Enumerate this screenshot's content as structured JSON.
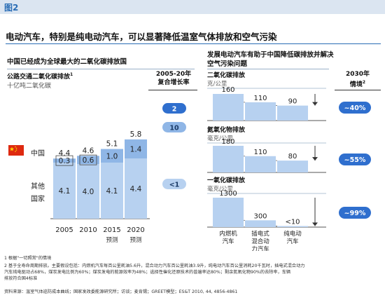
{
  "figure_label": "图2",
  "title": "电动汽车，特别是纯电动汽车，可以显著降低温室气体排放和空气污染",
  "left_panel": {
    "heading": "中国已经成为全球最大的二氧化碳排放国",
    "chart_title": "公路交通二氧化碳排放",
    "chart_title_sup": "1",
    "unit": "十亿吨二氧化碳",
    "cagr_header_line1": "2005-20年",
    "cagr_header_line2": "复合增长率",
    "country_label": "中国",
    "other_label_line1": "其他",
    "other_label_line2": "国家",
    "projection_label": "预测"
  },
  "right_panel": {
    "heading_line1": "发展电动汽车有助于中国降低碳排放并解决",
    "heading_line2": "空气污染问题",
    "scenario_header_line1": "2030年",
    "scenario_header_line2": "情境",
    "scenario_header_sup": "2",
    "groups": [
      {
        "title": "二氧化碳排放",
        "unit": "克/公里",
        "reduction": "~40%"
      },
      {
        "title": "氮氧化物排放",
        "unit": "毫克/公里",
        "reduction": "~55%"
      },
      {
        "title": "一氧化碳排放",
        "unit": "毫克/公里",
        "reduction": "~99%"
      }
    ],
    "categories": [
      {
        "line1": "内燃机",
        "line2": "汽车",
        "line3": ""
      },
      {
        "line1": "插电式",
        "line2": "混合动",
        "line3": "力汽车"
      },
      {
        "line1": "纯电动",
        "line2": "汽车",
        "line3": ""
      }
    ]
  },
  "footnotes": {
    "note1": "1 根据\"一切照常\"的情境",
    "note2_line1": "2 基于全寿命周期排放。主要假设包括：内燃机汽车每百公里耗油5.6升，混合动力汽车百公里耗油3.9升，纯电动汽车百公里消耗20千瓦时，插电式混合动力",
    "note2_line2": "汽车纯电驱动占68%，煤炭发电比例为60%；煤炭发电的能源效率为48%；选择性催化还原技术的普遍率达80%；剩余氮氧化物90%的去除率，车辆",
    "note2_line3": "排放符合国4标准",
    "source": "资料来源：温室气体巡防成本曲线；国家发改委能源研究所；访谈；麦肯锡；GREET模型；ES&T 2010, 44, 4856-4861"
  },
  "chart_data": [
    {
      "type": "bar",
      "stacked": true,
      "title": "公路交通二氧化碳排放",
      "ylabel": "十亿吨二氧化碳",
      "categories": [
        "2005",
        "2010",
        "2015",
        "2020"
      ],
      "category_notes": [
        "",
        "",
        "预测",
        "预测"
      ],
      "series": [
        {
          "name": "其他国家",
          "values": [
            4.1,
            4.0,
            4.1,
            4.4
          ],
          "color": "#b7d1f0"
        },
        {
          "name": "中国",
          "values": [
            0.3,
            0.6,
            1.0,
            1.4
          ],
          "color": "#8fb6e6"
        }
      ],
      "totals": [
        4.4,
        4.6,
        5.1,
        5.8
      ],
      "cagr": [
        {
          "series": "中国",
          "value": "10",
          "color": "#8fb6e6"
        },
        {
          "series": "其他国家",
          "value": "<1",
          "color": "#b7d1f0"
        },
        {
          "series": "total",
          "value": "2",
          "color": "#2f6fce"
        }
      ],
      "ylim": [
        0,
        6.2
      ]
    },
    {
      "type": "bar",
      "title": "二氧化碳排放",
      "ylabel": "克/公里",
      "categories": [
        "内燃机汽车",
        "插电式混合动力汽车",
        "纯电动汽车"
      ],
      "values": [
        160,
        110,
        90
      ],
      "value_labels": [
        "160",
        "110",
        "90"
      ],
      "ylim": [
        0,
        175
      ]
    },
    {
      "type": "bar",
      "title": "氮氧化物排放",
      "ylabel": "毫克/公里",
      "categories": [
        "内燃机汽车",
        "插电式混合动力汽车",
        "纯电动汽车"
      ],
      "values": [
        180,
        110,
        80
      ],
      "value_labels": [
        "180",
        "110",
        "80"
      ],
      "ylim": [
        0,
        195
      ]
    },
    {
      "type": "bar",
      "title": "一氧化碳排放",
      "ylabel": "毫克/公里",
      "categories": [
        "内燃机汽车",
        "插电式混合动力汽车",
        "纯电动汽车"
      ],
      "values": [
        1300,
        300,
        10
      ],
      "value_labels": [
        "1300",
        "300",
        "<10"
      ],
      "ylim": [
        0,
        1400
      ]
    }
  ]
}
